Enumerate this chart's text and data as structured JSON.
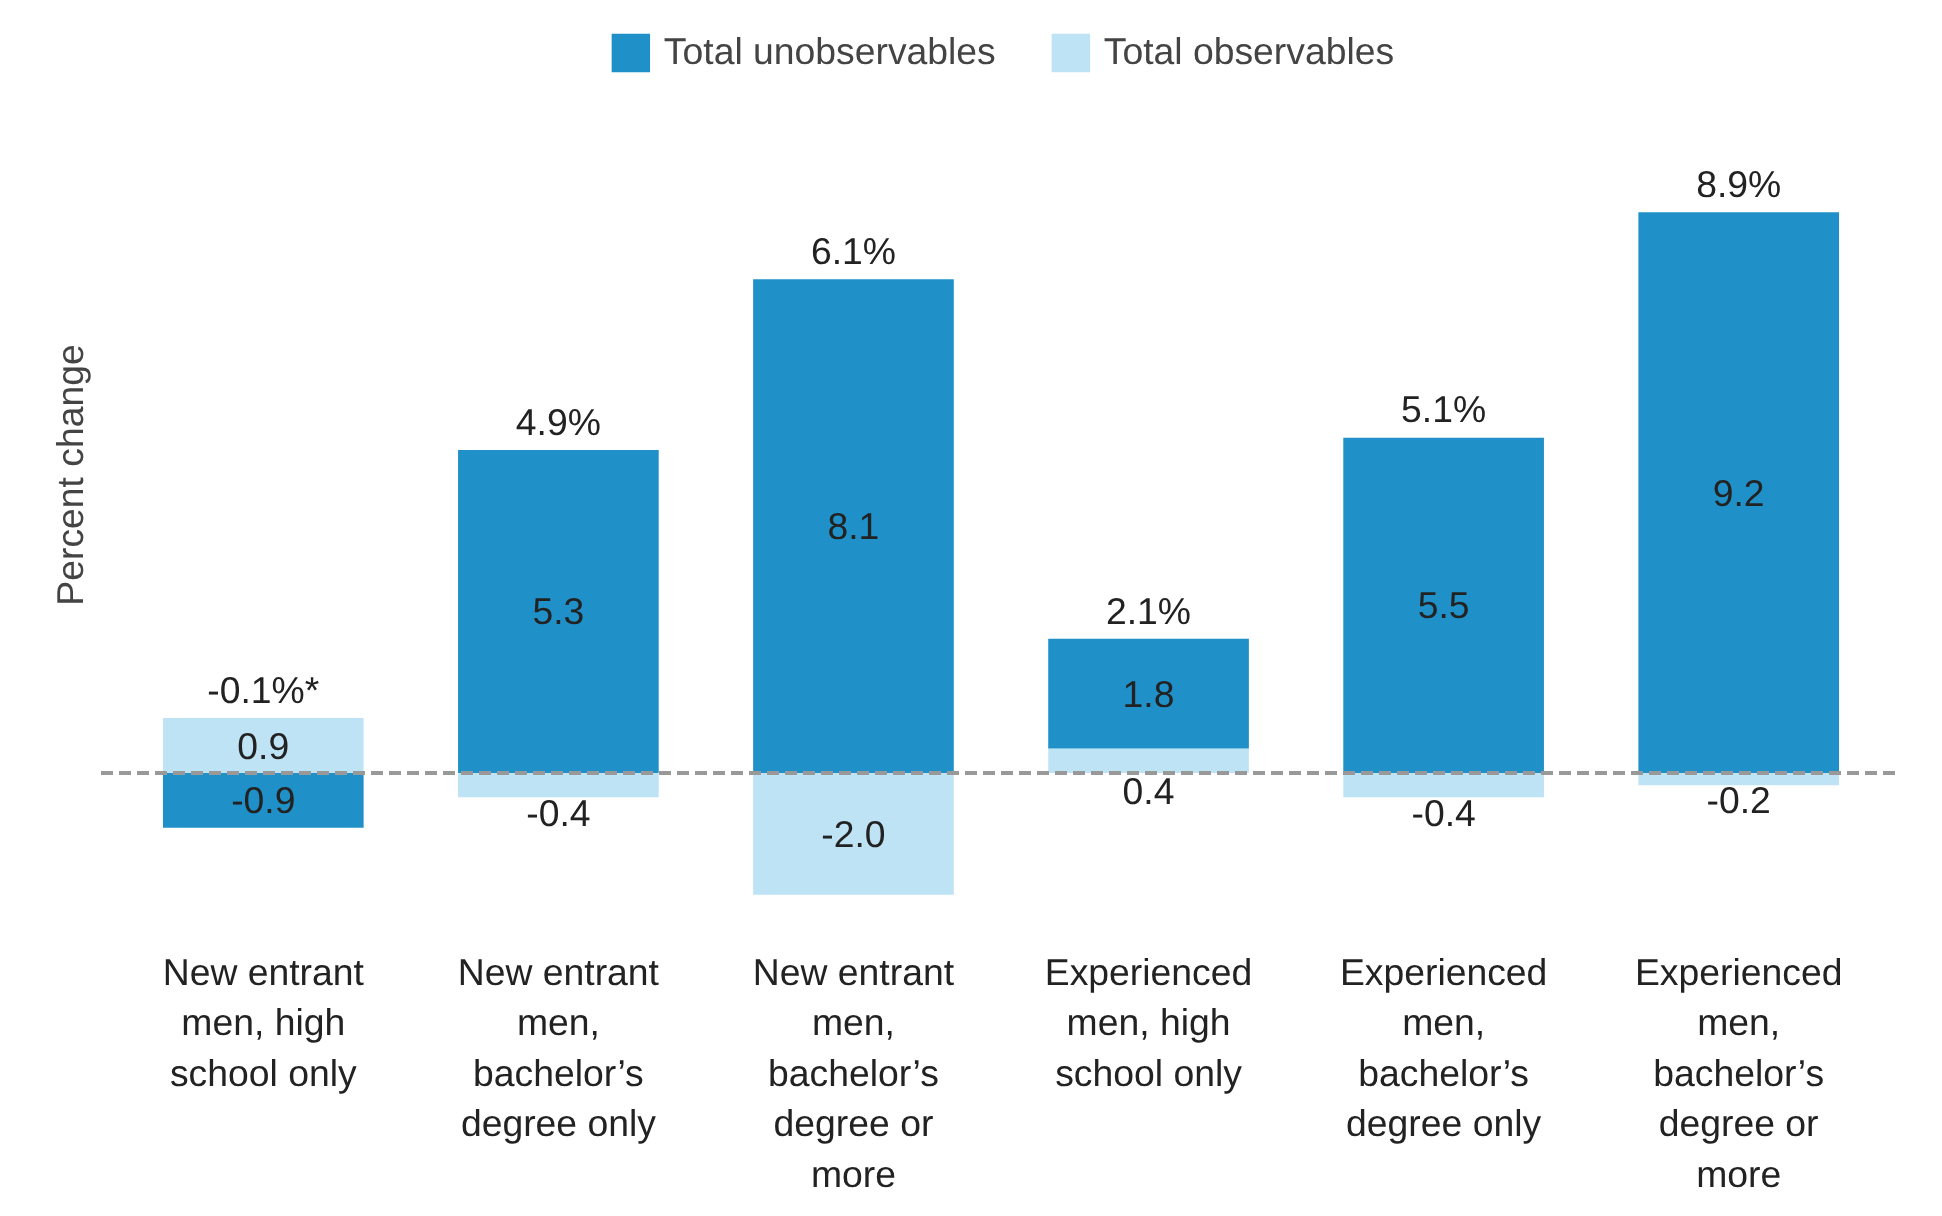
{
  "chart_data": {
    "type": "bar",
    "stacked": true,
    "ylabel": "Percent change",
    "categories": [
      "New entrant men, high school only",
      "New entrant men, bachelor’s degree only",
      "New entrant men, bachelor’s degree or more",
      "Experienced men, high school only",
      "Experienced men, bachelor’s degree only",
      "Experienced men, bachelor’s degree or more"
    ],
    "series": [
      {
        "name": "Total observables",
        "color": "#bee3f5",
        "values": [
          0.9,
          -0.4,
          -2.0,
          0.4,
          -0.4,
          -0.2
        ],
        "value_labels": [
          "0.9",
          "-0.4",
          "-2.0",
          "0.4",
          "-0.4",
          "-0.2"
        ]
      },
      {
        "name": "Total unobservables",
        "color": "#1f91c8",
        "values": [
          -0.9,
          5.3,
          8.1,
          1.8,
          5.5,
          9.2
        ],
        "value_labels": [
          "-0.9",
          "5.3",
          "8.1",
          "1.8",
          "5.5",
          "9.2"
        ]
      }
    ],
    "totals": [
      "-0.1%*",
      "4.9%",
      "6.1%",
      "2.1%",
      "5.1%",
      "8.9%"
    ],
    "ref_lines": [
      {
        "axis": "y",
        "value": 0,
        "color": "#999999",
        "line_style": "dashed"
      }
    ],
    "legend": "top",
    "tick_labels": "x"
  }
}
